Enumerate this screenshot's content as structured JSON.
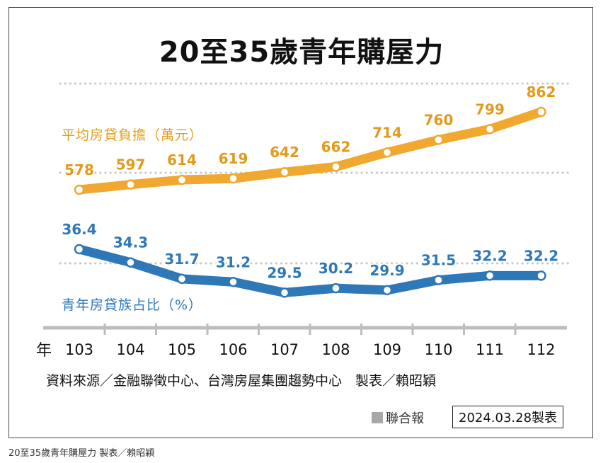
{
  "title": "20至35歲青年購屋力",
  "chart_data": {
    "type": "line",
    "title": "20至35歲青年購屋力",
    "xlabel": "年",
    "categories": [
      "103",
      "104",
      "105",
      "106",
      "107",
      "108",
      "109",
      "110",
      "111",
      "112"
    ],
    "series": [
      {
        "name": "平均房貸負擔（萬元）",
        "color": "#f0a830",
        "values": [
          578,
          597,
          614,
          619,
          642,
          662,
          714,
          760,
          799,
          862
        ]
      },
      {
        "name": "青年房貸族占比（%）",
        "color": "#2f78b7",
        "values": [
          36.4,
          34.3,
          31.7,
          31.2,
          29.5,
          30.2,
          29.9,
          31.5,
          32.2,
          32.2
        ]
      }
    ],
    "grid": "dotted"
  },
  "source": "資料來源／金融聯徵中心、台灣房屋集團趨勢中心　製表／賴昭穎",
  "publisher": "聯合報",
  "date_stamp": "2024.03.28製表",
  "caption": "20至35歲青年購屋力 製表／賴昭穎"
}
